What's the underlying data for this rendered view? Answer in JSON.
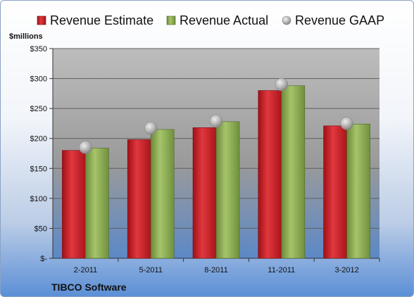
{
  "chart_data": {
    "type": "bar",
    "unit_label": "$millions",
    "company": "TIBCO Software",
    "categories": [
      "2-2011",
      "5-2011",
      "8-2011",
      "11-2011",
      "3-2012"
    ],
    "series": [
      {
        "name": "Revenue Estimate",
        "kind": "bar",
        "color": "#cc1f27",
        "values": [
          180,
          198,
          218,
          280,
          221
        ]
      },
      {
        "name": "Revenue Actual",
        "kind": "bar",
        "color": "#8fad56",
        "values": [
          184,
          215,
          228,
          288,
          224
        ]
      },
      {
        "name": "Revenue GAAP",
        "kind": "marker",
        "color": "#b3b3b3",
        "values": [
          185,
          217,
          229,
          290,
          225
        ]
      }
    ],
    "ylim": [
      0,
      350
    ],
    "yticks": [
      0,
      50,
      100,
      150,
      200,
      250,
      300,
      350
    ],
    "ytick_labels": [
      "$-",
      "$50",
      "$100",
      "$150",
      "$200",
      "$250",
      "$300",
      "$350"
    ],
    "grid": true,
    "legend_position": "top"
  }
}
